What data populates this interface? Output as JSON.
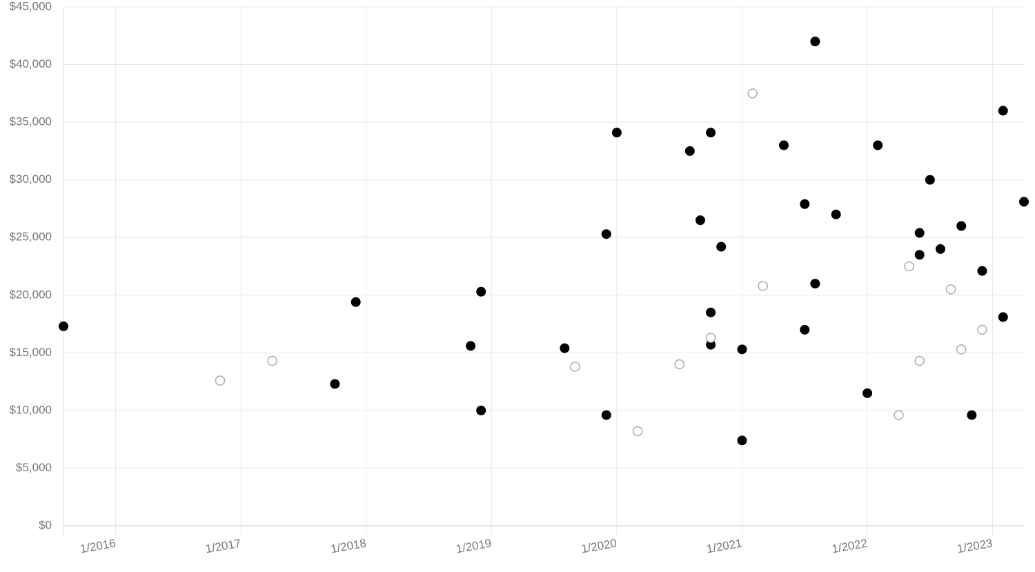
{
  "chart_data": {
    "type": "scatter",
    "xlim": [
      "2015-08",
      "2023-04"
    ],
    "xticks": [
      {
        "value": "2016-01",
        "label": "1/2016"
      },
      {
        "value": "2017-01",
        "label": "1/2017"
      },
      {
        "value": "2018-01",
        "label": "1/2018"
      },
      {
        "value": "2019-01",
        "label": "1/2019"
      },
      {
        "value": "2020-01",
        "label": "1/2020"
      },
      {
        "value": "2021-01",
        "label": "1/2021"
      },
      {
        "value": "2022-01",
        "label": "1/2022"
      },
      {
        "value": "2023-01",
        "label": "1/2023"
      }
    ],
    "ylim": [
      0,
      45000
    ],
    "yticks": [
      {
        "value": 0,
        "label": "$0"
      },
      {
        "value": 5000,
        "label": "$5,000"
      },
      {
        "value": 10000,
        "label": "$10,000"
      },
      {
        "value": 15000,
        "label": "$15,000"
      },
      {
        "value": 20000,
        "label": "$20,000"
      },
      {
        "value": 25000,
        "label": "$25,000"
      },
      {
        "value": 30000,
        "label": "$30,000"
      },
      {
        "value": 35000,
        "label": "$35,000"
      },
      {
        "value": 40000,
        "label": "$40,000"
      },
      {
        "value": 45000,
        "label": "$45,000"
      }
    ],
    "grid": true,
    "series": [
      {
        "color": "#000000",
        "marker": "filled",
        "x": [
          "2015-08",
          "2017-10",
          "2017-12",
          "2018-11",
          "2018-12",
          "2018-12",
          "2019-08",
          "2019-12",
          "2019-12",
          "2020-01",
          "2020-08",
          "2020-09",
          "2020-10",
          "2020-10",
          "2020-10",
          "2020-11",
          "2021-01",
          "2021-01",
          "2021-05",
          "2021-07",
          "2021-07",
          "2021-08",
          "2021-08",
          "2021-10",
          "2022-01",
          "2022-02",
          "2022-06",
          "2022-06",
          "2022-07",
          "2022-08",
          "2022-10",
          "2022-11",
          "2022-12",
          "2023-02",
          "2023-02",
          "2023-04"
        ],
        "values": [
          17300,
          12300,
          19400,
          15600,
          10000,
          20300,
          15400,
          9600,
          25300,
          34100,
          32500,
          26500,
          34100,
          18500,
          15700,
          24200,
          15300,
          7400,
          33000,
          27900,
          17000,
          21000,
          42000,
          27000,
          11500,
          33000,
          25400,
          23500,
          30000,
          24000,
          26000,
          9600,
          22100,
          18100,
          36000,
          28100
        ]
      },
      {
        "color": "#aaaaaa",
        "marker": "open",
        "x": [
          "2016-11",
          "2017-04",
          "2019-09",
          "2020-03",
          "2020-07",
          "2020-10",
          "2021-02",
          "2021-03",
          "2022-04",
          "2022-05",
          "2022-06",
          "2022-09",
          "2022-10",
          "2022-12"
        ],
        "values": [
          12600,
          14300,
          13800,
          8200,
          14000,
          16300,
          37500,
          20800,
          9600,
          22500,
          14300,
          20500,
          15300,
          17000
        ]
      }
    ]
  }
}
